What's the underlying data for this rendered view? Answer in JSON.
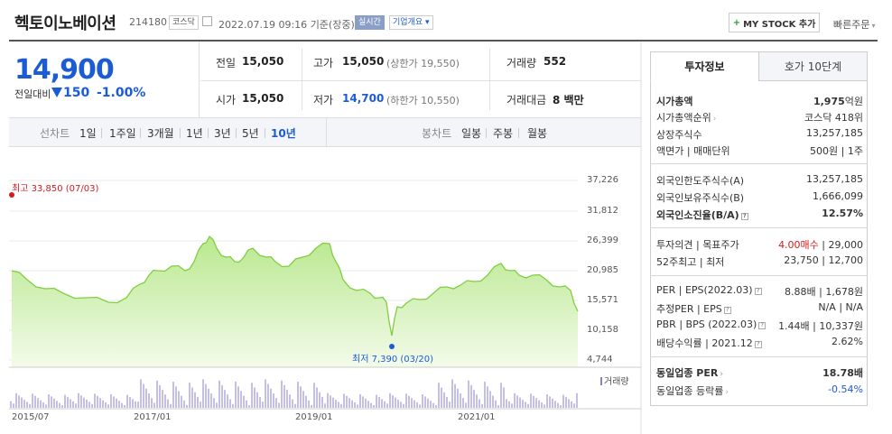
{
  "header": {
    "name": "헥토이노베이션",
    "code": "214180",
    "market_tag": "코스닥",
    "datetime": "2022.07.19 09:16",
    "basis": "기준(장중)",
    "realtime_tag": "실시간",
    "company_tag": "기업개요",
    "mystock_label": "MY STOCK 추가",
    "quick_order": "빠른주문"
  },
  "price": {
    "current": "14,900",
    "vs_label": "전일대비",
    "change": "150",
    "change_pct": "-1.00%"
  },
  "quote": {
    "prev_label": "전일",
    "prev": "15,050",
    "high_label": "고가",
    "high": "15,050",
    "upper_label": "(상한가 19,550)",
    "vol_label": "거래량",
    "vol": "552",
    "open_label": "시가",
    "open": "15,050",
    "low_label": "저가",
    "low": "14,700",
    "lower_label": "(하한가 10,550)",
    "amt_label": "거래대금",
    "amt": "8 백만"
  },
  "periods": {
    "line_label": "선차트",
    "line_items": [
      "1일",
      "1주일",
      "3개월",
      "1년",
      "3년",
      "5년",
      "10년"
    ],
    "candle_label": "봉차트",
    "candle_items": [
      "일봉",
      "주봉",
      "월봉"
    ]
  },
  "chart_data": {
    "type": "area",
    "y_ticks": [
      "37,226",
      "31,812",
      "26,399",
      "20,985",
      "15,571",
      "10,158",
      "4,744"
    ],
    "x_ticks": [
      "2015/07",
      "2017/01",
      "2019/01",
      "2021/01"
    ],
    "max_label": "최고 33,850 (07/03)",
    "min_label": "최저 7,390 (03/20)",
    "volume_label": "거래량",
    "color": "#7fcf3f"
  },
  "tabs": {
    "invest": "투자정보",
    "hoga": "호가 10단계"
  },
  "info": {
    "mcap_label": "시가총액",
    "mcap": "1,975",
    "mcap_unit": "억원",
    "rank_label": "시가총액순위",
    "rank": "코스닥 418위",
    "shares_label": "상장주식수",
    "shares": "13,257,185",
    "face_label": "액면가",
    "unit_label": "매매단위",
    "face": "500원",
    "unit": "1주",
    "foreign_limit_label": "외국인한도주식수(A)",
    "foreign_limit": "13,257,185",
    "foreign_hold_label": "외국인보유주식수(B)",
    "foreign_hold": "1,666,099",
    "foreign_ratio_label": "외국인소진율(B/A)",
    "foreign_ratio": "12.57%",
    "opinion_label": "투자의견",
    "target_label": "목표주가",
    "opinion": "4.00매수",
    "target": "29,000",
    "w52_label": "52주최고",
    "w52_low_label": "최저",
    "w52_high": "23,750",
    "w52_low": "12,700",
    "per_label": "PER",
    "eps_label": "EPS(2022.03)",
    "per": "8.88배",
    "eps": "1,678원",
    "eper_label": "추정PER",
    "eeps_label": "EPS",
    "eper": "N/A",
    "eeps": "N/A",
    "pbr_label": "PBR",
    "bps_label": "BPS (2022.03)",
    "pbr": "1.44배",
    "bps": "10,337원",
    "div_label": "배당수익률",
    "div_year": "2021.12",
    "div": "2.62%",
    "sector_per_label": "동일업종 PER",
    "sector_per": "18.78배",
    "sector_chg_label": "동일업종 등락률",
    "sector_chg": "-0.54%"
  }
}
